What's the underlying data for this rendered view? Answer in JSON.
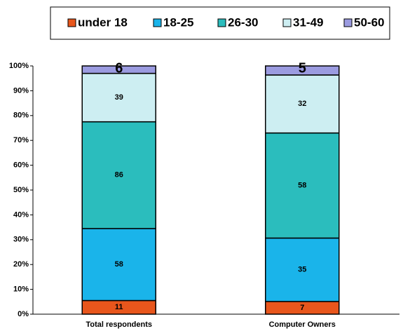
{
  "chart_data": {
    "type": "stacked-percent-bar",
    "categories": [
      "Total respondents",
      "Computer Owners"
    ],
    "series": [
      {
        "name": "under 18",
        "color": "#e8561c",
        "values": [
          11,
          7
        ]
      },
      {
        "name": "18-25",
        "color": "#1ab4ea",
        "values": [
          58,
          35
        ]
      },
      {
        "name": "26-30",
        "color": "#2bbdbd",
        "values": [
          86,
          58
        ]
      },
      {
        "name": "31-49",
        "color": "#cdeef2",
        "values": [
          39,
          32
        ]
      },
      {
        "name": "50-60",
        "color": "#9b9be0",
        "values": [
          6,
          5
        ]
      }
    ],
    "ylim": [
      0,
      100
    ],
    "yticks": [
      {
        "value": 0,
        "label": "0%"
      },
      {
        "value": 10,
        "label": "10%"
      },
      {
        "value": 20,
        "label": "20%"
      },
      {
        "value": 30,
        "label": "30%"
      },
      {
        "value": 40,
        "label": "40%"
      },
      {
        "value": 50,
        "label": "50%"
      },
      {
        "value": 60,
        "label": "60%"
      },
      {
        "value": 70,
        "label": "70%"
      },
      {
        "value": 80,
        "label": "80%"
      },
      {
        "value": 90,
        "label": "90%"
      },
      {
        "value": 100,
        "label": "100%"
      }
    ],
    "legend": "top"
  }
}
